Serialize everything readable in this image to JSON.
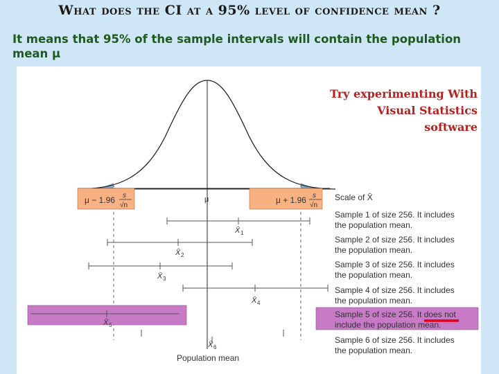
{
  "slide": {
    "title": "What does the CI at a 95% level of confidence mean ?",
    "subtitle": "It means that 95% of the sample intervals will contain the population mean μ",
    "callout_line1": "Try experimenting With",
    "callout_line2": "Visual Statistics software"
  },
  "figure": {
    "lower_bound_label": "μ − 1.96",
    "upper_bound_label": "μ + 1.96",
    "sigma_symbol": "s",
    "root_n": "√n",
    "mu_label": "μ",
    "scale_label": "Scale of X̄",
    "population_mean_label": "Population mean",
    "xbar_symbol": "X̄",
    "samples": [
      {
        "line1": "Sample 1 of size 256. It includes",
        "line2": "the population mean.",
        "sub": "1",
        "includes": true
      },
      {
        "line1": "Sample 2 of size 256. It includes",
        "line2": "the population mean.",
        "sub": "2",
        "includes": true
      },
      {
        "line1": "Sample 3 of size 256. It includes",
        "line2": "the population mean.",
        "sub": "3",
        "includes": true
      },
      {
        "line1": "Sample 4 of size 256. It includes",
        "line2": "the population mean.",
        "sub": "4",
        "includes": true
      },
      {
        "line1": "Sample 5 of size 256. It does not",
        "line2": "include the population mean.",
        "sub": "5",
        "includes": false
      },
      {
        "line1": "Sample 6 of size 256. It includes",
        "line2": "the population mean.",
        "sub": "6",
        "includes": true
      }
    ],
    "colors": {
      "bound_box": "#f7b183",
      "miss_box": "#c77bc7",
      "tail_fill": "#8fa8c8",
      "underline": "#e0001a"
    }
  }
}
